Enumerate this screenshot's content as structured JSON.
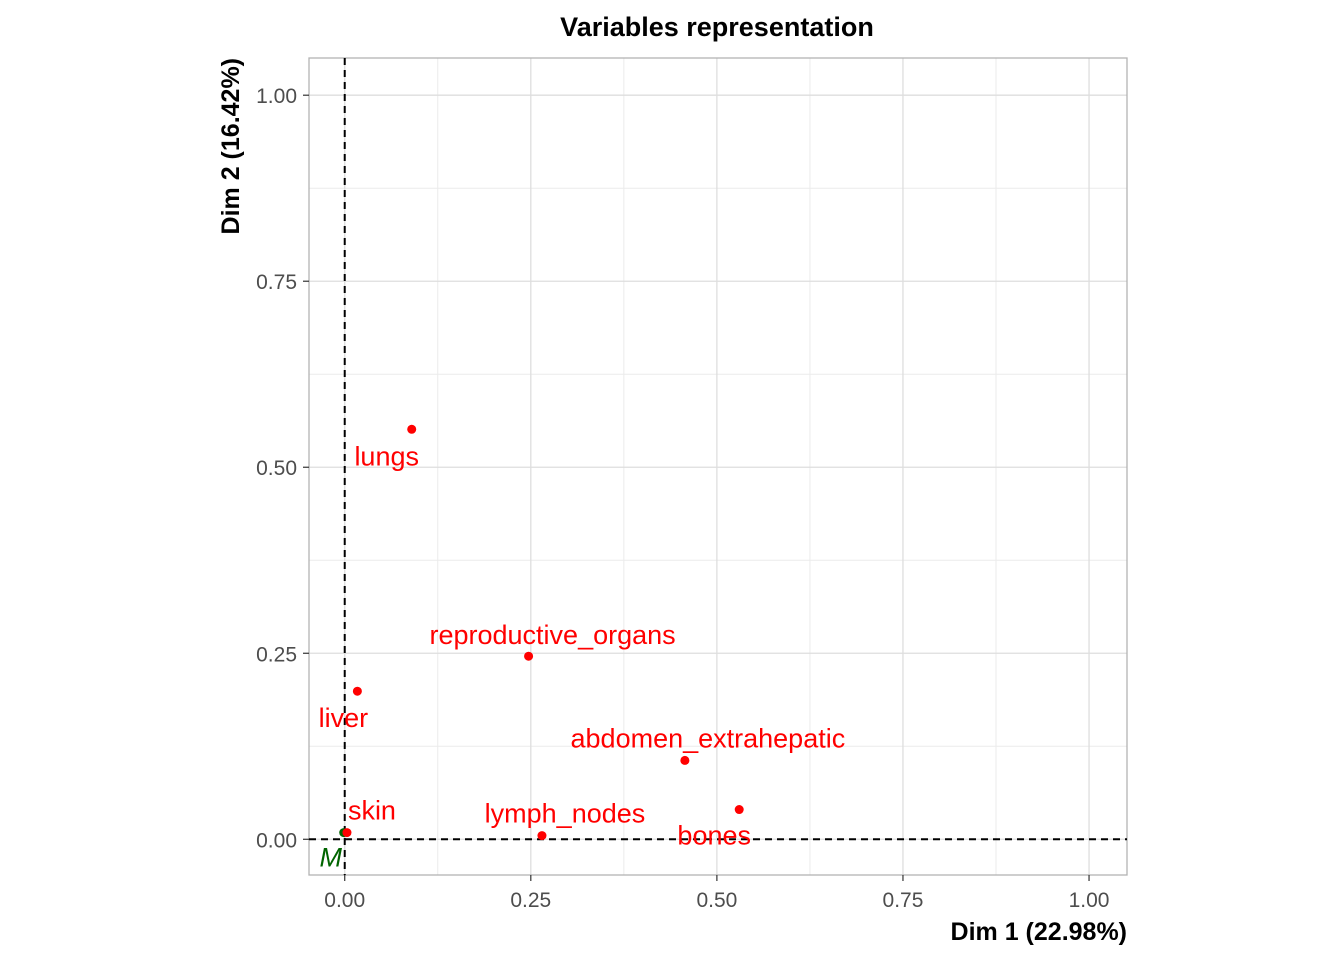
{
  "chart_data": {
    "type": "scatter",
    "title": "Variables representation",
    "xlabel": "Dim 1 (22.98%)",
    "ylabel": "Dim 2 (16.42%)",
    "xlim": [
      -0.048,
      1.051
    ],
    "ylim": [
      -0.048,
      1.05
    ],
    "xticks": [
      0,
      0.25,
      0.5,
      0.75,
      1.0
    ],
    "yticks": [
      0,
      0.25,
      0.5,
      0.75,
      1.0
    ],
    "xtick_labels": [
      "0.00",
      "0.25",
      "0.50",
      "0.75",
      "1.00"
    ],
    "ytick_labels": [
      "0.00",
      "0.25",
      "0.50",
      "0.75",
      "1.00"
    ],
    "grid": true,
    "reference_lines": {
      "x": 0,
      "y": 0,
      "style": "dashed"
    },
    "colors": {
      "active": "#ff0000",
      "supplementary": "#006400"
    },
    "points": [
      {
        "label": "lungs",
        "x": 0.09,
        "y": 0.551,
        "group": "active"
      },
      {
        "label": "reproductive_organs",
        "x": 0.247,
        "y": 0.246,
        "group": "active"
      },
      {
        "label": "liver",
        "x": 0.017,
        "y": 0.199,
        "group": "active"
      },
      {
        "label": "abdomen_extrahepatic",
        "x": 0.457,
        "y": 0.106,
        "group": "active"
      },
      {
        "label": "bones",
        "x": 0.53,
        "y": 0.04,
        "group": "active"
      },
      {
        "label": "lymph_nodes",
        "x": 0.265,
        "y": 0.005,
        "group": "active"
      },
      {
        "label": "M",
        "x": 0.0,
        "y": 0.009,
        "group": "supplementary"
      },
      {
        "label": "skin",
        "x": 0.003,
        "y": 0.009,
        "group": "active"
      }
    ]
  }
}
